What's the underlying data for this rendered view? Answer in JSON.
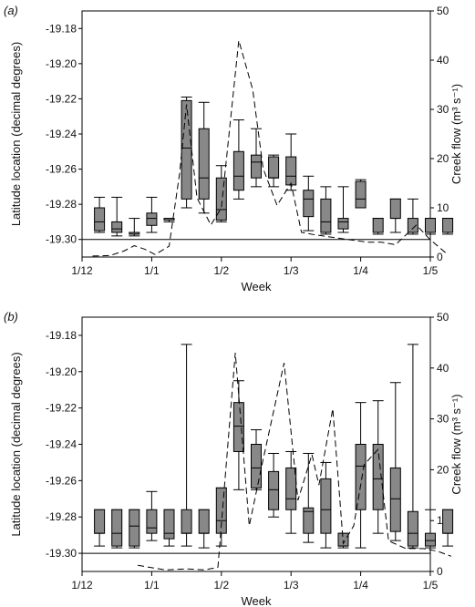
{
  "chart_data": [
    {
      "type": "box",
      "panel_label": "(a)",
      "xlabel": "Week",
      "ylabel": "Latitude location (decimal degrees)",
      "y2label": "Creek flow (m³ s⁻¹)",
      "x_ticks": [
        "1/12",
        "1/1",
        "1/2",
        "1/3",
        "1/4",
        "1/5"
      ],
      "ylim": [
        -19.31,
        -19.17
      ],
      "y_ticks": [
        -19.3,
        -19.28,
        -19.26,
        -19.24,
        -19.22,
        -19.2,
        -19.18
      ],
      "y2lim": [
        0,
        50
      ],
      "y2_ticks": [
        0,
        10,
        20,
        30,
        40,
        50
      ],
      "reference_line": -19.3,
      "boxes": [
        {
          "x": 0.5,
          "whislo": -19.296,
          "q1": -19.295,
          "med": -19.29,
          "q3": -19.282,
          "whishi": -19.276
        },
        {
          "x": 1.0,
          "whislo": -19.298,
          "q1": -19.296,
          "med": -19.294,
          "q3": -19.29,
          "whishi": -19.276
        },
        {
          "x": 1.5,
          "whislo": -19.298,
          "q1": -19.297,
          "med": -19.297,
          "q3": -19.296,
          "whishi": -19.288
        },
        {
          "x": 2.0,
          "whislo": -19.296,
          "q1": -19.292,
          "med": -19.288,
          "q3": -19.285,
          "whishi": -19.276
        },
        {
          "x": 2.5,
          "whislo": -19.29,
          "q1": -19.289,
          "med": -19.289,
          "q3": -19.288,
          "whishi": -19.288
        },
        {
          "x": 3.0,
          "whislo": -19.282,
          "q1": -19.277,
          "med": -19.248,
          "q3": -19.221,
          "whishi": -19.219
        },
        {
          "x": 3.5,
          "whislo": -19.285,
          "q1": -19.277,
          "med": -19.265,
          "q3": -19.237,
          "whishi": -19.222
        },
        {
          "x": 4.0,
          "whislo": -19.29,
          "q1": -19.289,
          "med": -19.283,
          "q3": -19.265,
          "whishi": -19.258
        },
        {
          "x": 4.5,
          "whislo": -19.277,
          "q1": -19.272,
          "med": -19.264,
          "q3": -19.25,
          "whishi": -19.232
        },
        {
          "x": 5.0,
          "whislo": -19.27,
          "q1": -19.265,
          "med": -19.256,
          "q3": -19.252,
          "whishi": -19.237
        },
        {
          "x": 5.5,
          "whislo": -19.27,
          "q1": -19.265,
          "med": -19.265,
          "q3": -19.253,
          "whishi": -19.252
        },
        {
          "x": 6.0,
          "whislo": -19.272,
          "q1": -19.269,
          "med": -19.264,
          "q3": -19.253,
          "whishi": -19.24
        },
        {
          "x": 6.5,
          "whislo": -19.295,
          "q1": -19.287,
          "med": -19.277,
          "q3": -19.272,
          "whishi": -19.264
        },
        {
          "x": 7.0,
          "whislo": -19.297,
          "q1": -19.296,
          "med": -19.29,
          "q3": -19.277,
          "whishi": -19.27
        },
        {
          "x": 7.5,
          "whislo": -19.296,
          "q1": -19.294,
          "med": -19.29,
          "q3": -19.288,
          "whishi": -19.27
        },
        {
          "x": 8.0,
          "whislo": -19.282,
          "q1": -19.282,
          "med": -19.277,
          "q3": -19.267,
          "whishi": -19.266
        },
        {
          "x": 8.5,
          "whislo": -19.297,
          "q1": -19.296,
          "med": -19.296,
          "q3": -19.288,
          "whishi": -19.288
        },
        {
          "x": 9.0,
          "whislo": -19.296,
          "q1": -19.288,
          "med": -19.288,
          "q3": -19.277,
          "whishi": -19.277
        },
        {
          "x": 9.5,
          "whislo": -19.297,
          "q1": -19.296,
          "med": -19.296,
          "q3": -19.288,
          "whishi": -19.277
        },
        {
          "x": 10.0,
          "whislo": -19.297,
          "q1": -19.296,
          "med": -19.296,
          "q3": -19.288,
          "whishi": -19.288
        },
        {
          "x": 10.5,
          "whislo": -19.297,
          "q1": -19.296,
          "med": -19.296,
          "q3": -19.288,
          "whishi": -19.288
        }
      ],
      "creek_flow": {
        "x": [
          0.3,
          0.8,
          1.2,
          1.5,
          1.8,
          2.1,
          2.5,
          2.8,
          3.0,
          3.3,
          3.7,
          4.0,
          4.5,
          4.9,
          5.2,
          5.6,
          6.0,
          6.3,
          6.7,
          7.2,
          7.7,
          8.2,
          8.6,
          9.0,
          9.6,
          10.0,
          10.5
        ],
        "values": [
          0.2,
          0.3,
          1.2,
          2.3,
          1.6,
          0.5,
          2.2,
          17,
          31,
          12,
          6.5,
          10,
          44,
          34,
          18,
          10.5,
          15,
          5,
          4.5,
          4,
          3.5,
          3,
          3,
          2.5,
          6.5,
          3.5,
          0.5
        ]
      }
    },
    {
      "type": "box",
      "panel_label": "(b)",
      "xlabel": "Week",
      "ylabel": "Latitude location (decimal degrees)",
      "y2label": "Creek flow (m³ s⁻¹)",
      "x_ticks": [
        "1/12",
        "1/1",
        "1/2",
        "1/3",
        "1/4",
        "1/5"
      ],
      "ylim": [
        -19.31,
        -19.17
      ],
      "y_ticks": [
        -19.3,
        -19.28,
        -19.26,
        -19.24,
        -19.22,
        -19.2,
        -19.18
      ],
      "y2lim": [
        0,
        50
      ],
      "y2_ticks": [
        0,
        10,
        20,
        30,
        40,
        50
      ],
      "reference_line": -19.3,
      "boxes": [
        {
          "x": 0.5,
          "whislo": -19.296,
          "q1": -19.289,
          "med": -19.289,
          "q3": -19.276,
          "whishi": -19.276
        },
        {
          "x": 1.0,
          "whislo": -19.297,
          "q1": -19.296,
          "med": -19.289,
          "q3": -19.276,
          "whishi": -19.276
        },
        {
          "x": 1.5,
          "whislo": -19.297,
          "q1": -19.296,
          "med": -19.285,
          "q3": -19.276,
          "whishi": -19.276
        },
        {
          "x": 2.0,
          "whislo": -19.293,
          "q1": -19.289,
          "med": -19.286,
          "q3": -19.276,
          "whishi": -19.266
        },
        {
          "x": 2.5,
          "whislo": -19.296,
          "q1": -19.292,
          "med": -19.289,
          "q3": -19.276,
          "whishi": -19.276
        },
        {
          "x": 3.0,
          "whislo": -19.296,
          "q1": -19.289,
          "med": -19.289,
          "q3": -19.276,
          "whishi": -19.185
        },
        {
          "x": 3.5,
          "whislo": -19.297,
          "q1": -19.289,
          "med": -19.289,
          "q3": -19.276,
          "whishi": -19.276
        },
        {
          "x": 4.0,
          "whislo": -19.296,
          "q1": -19.289,
          "med": -19.282,
          "q3": -19.264,
          "whishi": -19.264
        },
        {
          "x": 4.5,
          "whislo": -19.265,
          "q1": -19.244,
          "med": -19.23,
          "q3": -19.217,
          "whishi": -19.205
        },
        {
          "x": 5.0,
          "whislo": -19.265,
          "q1": -19.264,
          "med": -19.253,
          "q3": -19.24,
          "whishi": -19.232
        },
        {
          "x": 5.5,
          "whislo": -19.28,
          "q1": -19.276,
          "med": -19.265,
          "q3": -19.255,
          "whishi": -19.245
        },
        {
          "x": 6.0,
          "whislo": -19.289,
          "q1": -19.276,
          "med": -19.27,
          "q3": -19.253,
          "whishi": -19.244
        },
        {
          "x": 6.5,
          "whislo": -19.294,
          "q1": -19.289,
          "med": -19.277,
          "q3": -19.275,
          "whishi": -19.245
        },
        {
          "x": 7.0,
          "whislo": -19.297,
          "q1": -19.289,
          "med": -19.276,
          "q3": -19.259,
          "whishi": -19.25
        },
        {
          "x": 7.5,
          "whislo": -19.297,
          "q1": -19.296,
          "med": -19.296,
          "q3": -19.289,
          "whishi": -19.289
        },
        {
          "x": 8.0,
          "whislo": -19.297,
          "q1": -19.276,
          "med": -19.252,
          "q3": -19.24,
          "whishi": -19.217
        },
        {
          "x": 8.5,
          "whislo": -19.289,
          "q1": -19.276,
          "med": -19.259,
          "q3": -19.24,
          "whishi": -19.216
        },
        {
          "x": 9.0,
          "whislo": -19.293,
          "q1": -19.288,
          "med": -19.27,
          "q3": -19.253,
          "whishi": -19.206
        },
        {
          "x": 9.5,
          "whislo": -19.297,
          "q1": -19.296,
          "med": -19.289,
          "q3": -19.277,
          "whishi": -19.185
        },
        {
          "x": 10.0,
          "whislo": -19.297,
          "q1": -19.296,
          "med": -19.293,
          "q3": -19.289,
          "whishi": -19.276
        },
        {
          "x": 10.5,
          "whislo": -19.296,
          "q1": -19.289,
          "med": -19.289,
          "q3": -19.276,
          "whishi": -19.276
        }
      ],
      "creek_flow": {
        "x": [
          1.6,
          2.4,
          3.0,
          3.5,
          3.9,
          4.4,
          4.8,
          5.2,
          5.8,
          6.2,
          6.6,
          6.8,
          7.2,
          7.5,
          7.8,
          8.1,
          8.5,
          8.8,
          9.3,
          9.8,
          10.2,
          10.6
        ],
        "values": [
          1.2,
          0.3,
          0.5,
          0.3,
          0.8,
          43,
          9,
          22,
          41,
          14,
          23,
          17,
          32,
          5.5,
          9,
          21,
          24,
          6,
          4.5,
          4.5,
          4,
          3
        ]
      }
    }
  ]
}
